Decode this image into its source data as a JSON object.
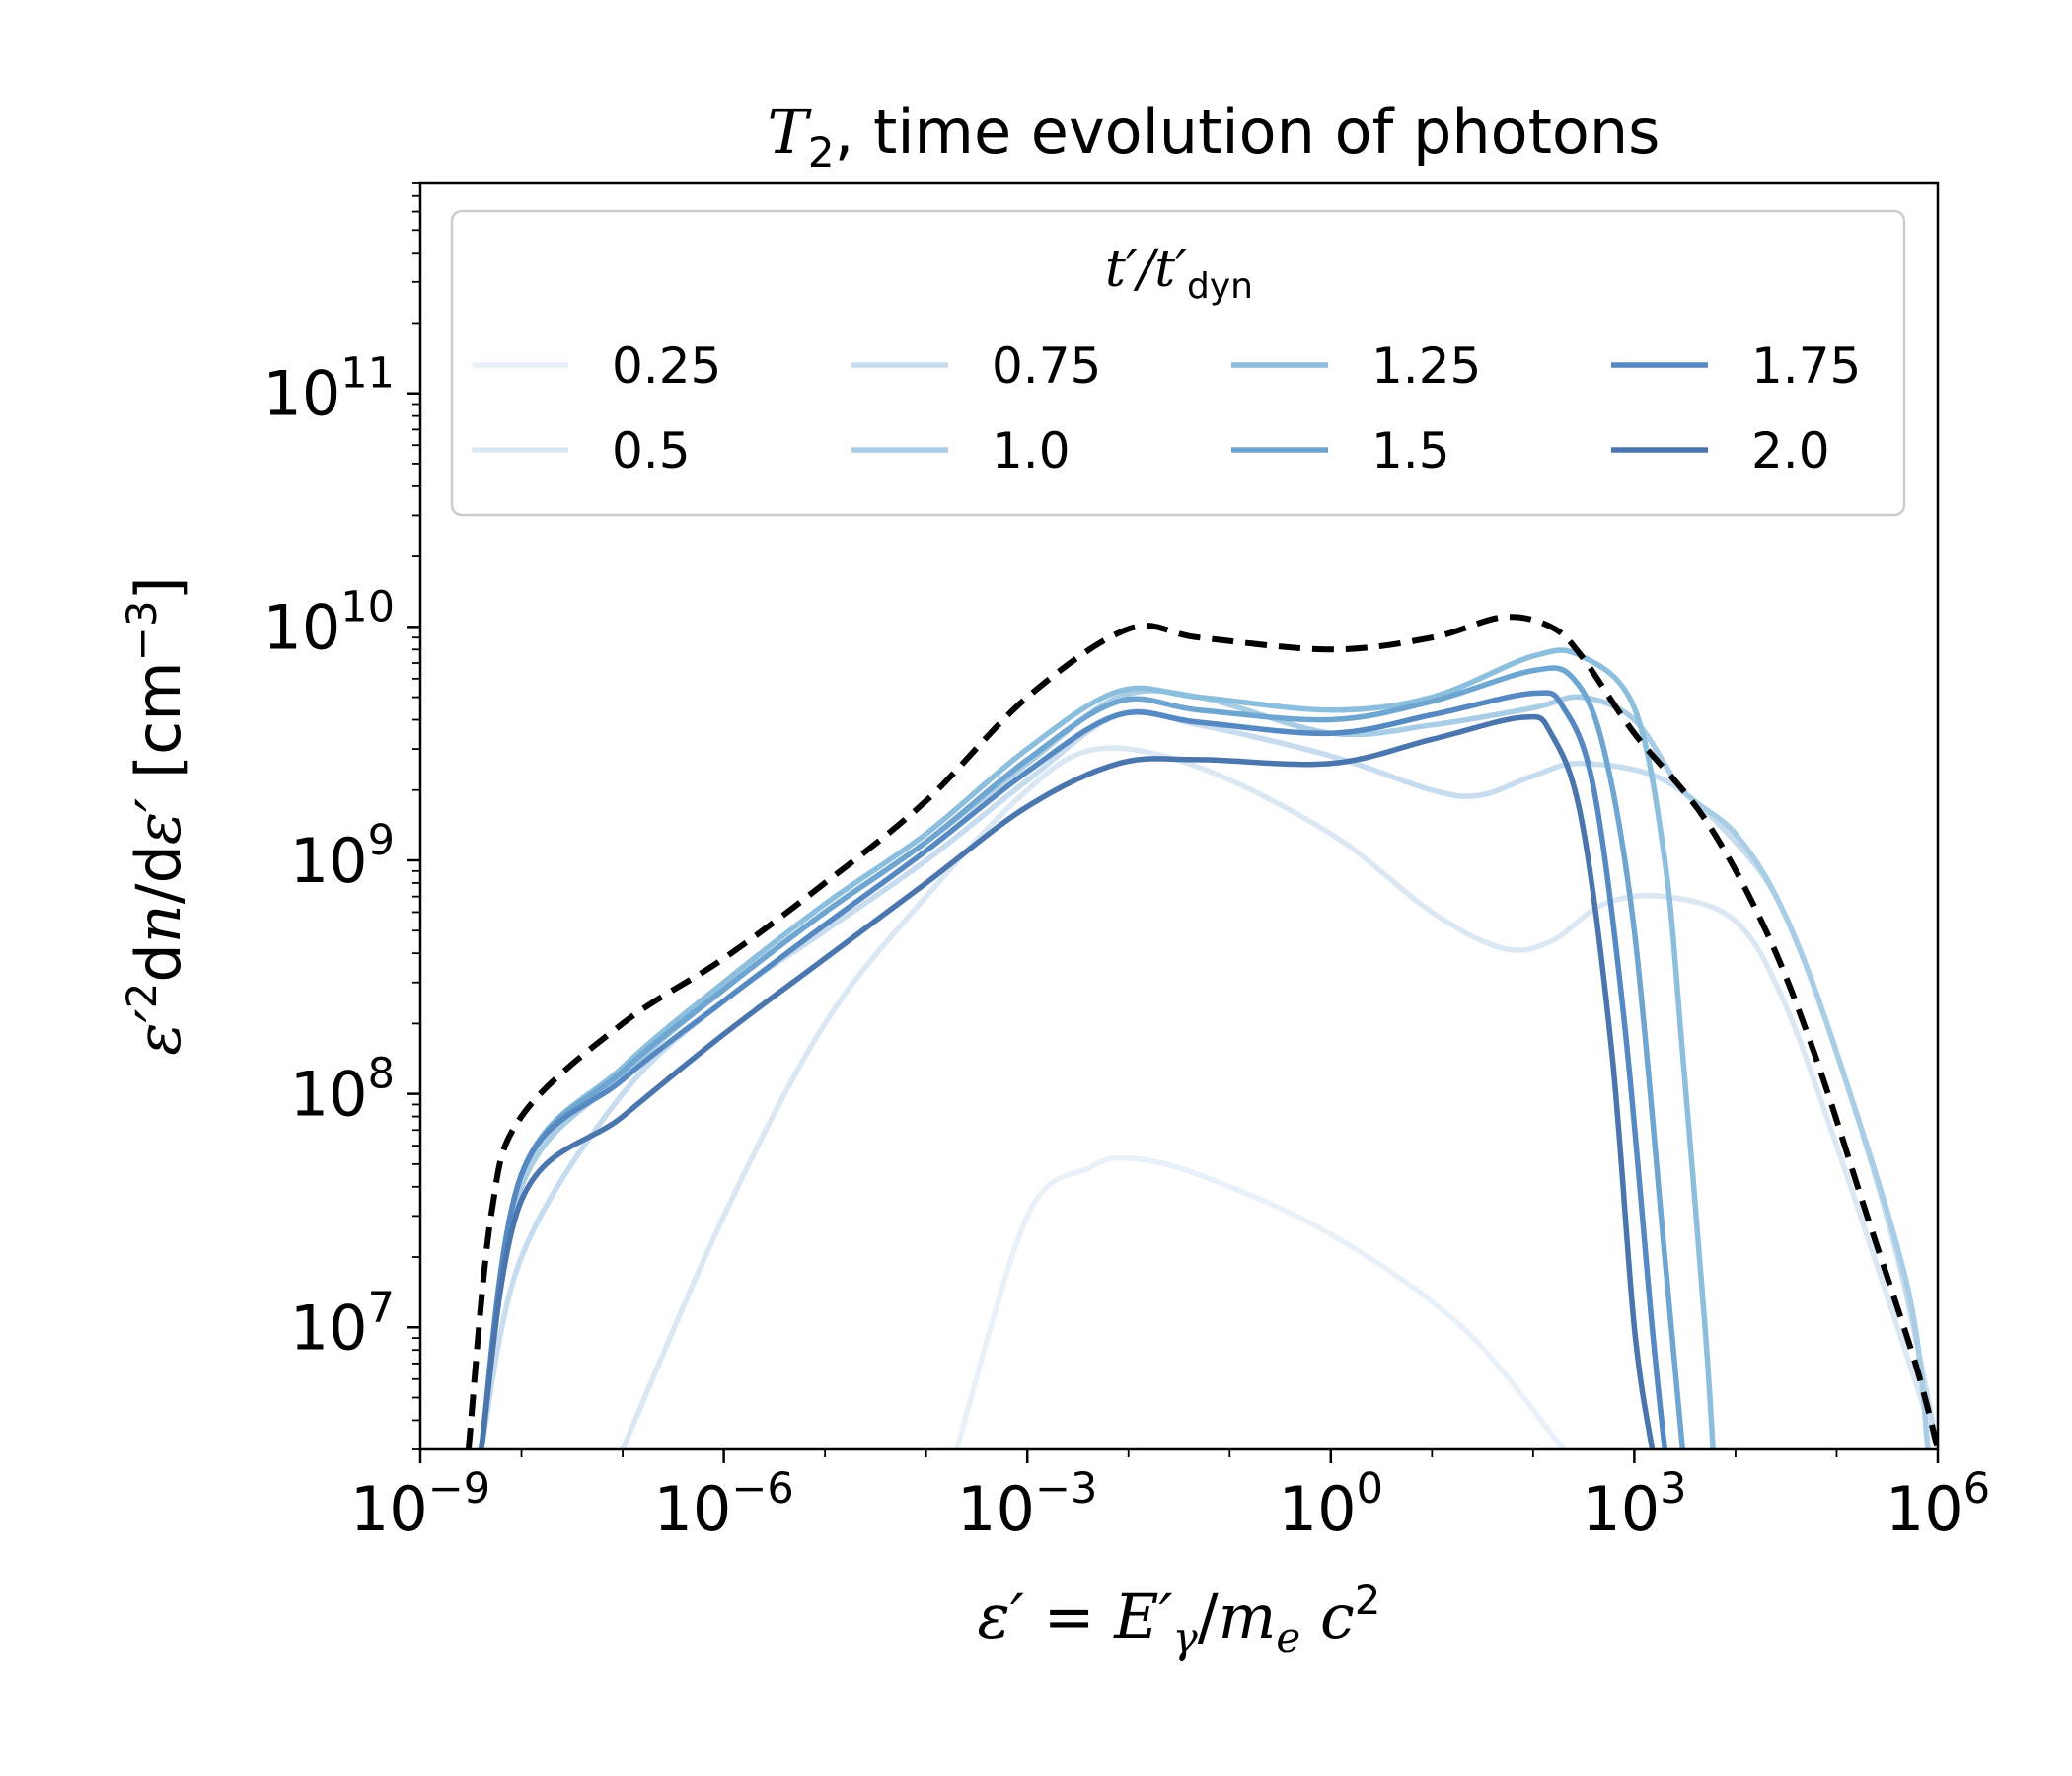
{
  "chart_data": {
    "type": "line",
    "title_main": "T",
    "title_sub": "2",
    "title_rest": ", time evolution of photons",
    "x_scale": "log",
    "y_scale": "log",
    "xlim": [
      1e-09,
      1000000.0
    ],
    "ylim": [
      3000000.0,
      800000000000.0
    ],
    "x_ticks": [
      {
        "value": 1e-09,
        "base": "10",
        "exp": "−9"
      },
      {
        "value": 1e-06,
        "base": "10",
        "exp": "−6"
      },
      {
        "value": 0.001,
        "base": "10",
        "exp": "−3"
      },
      {
        "value": 1,
        "base": "10",
        "exp": "0"
      },
      {
        "value": 1000.0,
        "base": "10",
        "exp": "3"
      },
      {
        "value": 1000000.0,
        "base": "10",
        "exp": "6"
      }
    ],
    "y_ticks": [
      {
        "value": 10000000.0,
        "base": "10",
        "exp": "7"
      },
      {
        "value": 100000000.0,
        "base": "10",
        "exp": "8"
      },
      {
        "value": 1000000000.0,
        "base": "10",
        "exp": "9"
      },
      {
        "value": 10000000000.0,
        "base": "10",
        "exp": "10"
      },
      {
        "value": 100000000000.0,
        "base": "10",
        "exp": "11"
      }
    ],
    "xlabel": "ε′ = E′γ/mₑc²",
    "ylabel": "ε′²dn/dε′ [cm⁻³]",
    "grid": false,
    "legend": {
      "title": "t′/t′dyn",
      "placement": "top",
      "columns": 4
    },
    "series": [
      {
        "name": "0.25",
        "color": "#e8f1fa",
        "points": [
          [
            0.0002,
            3000000.0
          ],
          [
            0.001,
            30000000.0
          ],
          [
            0.004,
            48000000.0
          ],
          [
            0.01,
            53000000.0
          ],
          [
            0.05,
            45000000.0
          ],
          [
            1,
            25000000.0
          ],
          [
            20,
            10000000.0
          ],
          [
            200,
            3000000.0
          ]
        ]
      },
      {
        "name": "0.5",
        "color": "#dbe8f4",
        "points": [
          [
            1e-07,
            3000000.0
          ],
          [
            1e-06,
            30000000.0
          ],
          [
            1e-05,
            200000000.0
          ],
          [
            0.0001,
            700000000.0
          ],
          [
            0.001,
            2000000000.0
          ],
          [
            0.005,
            3000000000.0
          ],
          [
            0.05,
            2500000000.0
          ],
          [
            1,
            1300000000.0
          ],
          [
            10,
            600000000.0
          ],
          [
            50,
            420000000.0
          ],
          [
            150,
            450000000.0
          ],
          [
            500,
            650000000.0
          ],
          [
            2000,
            700000000.0
          ],
          [
            10000,
            550000000.0
          ],
          [
            30000,
            250000000.0
          ],
          [
            100000,
            60000000.0
          ],
          [
            400000,
            10000000.0
          ],
          [
            1000000.0,
            3000000.0
          ]
        ]
      },
      {
        "name": "0.75",
        "color": "#c7dcef",
        "points": [
          [
            4e-09,
            3000000.0
          ],
          [
            1e-08,
            20000000.0
          ],
          [
            1e-07,
            100000000.0
          ],
          [
            1e-06,
            250000000.0
          ],
          [
            1e-05,
            500000000.0
          ],
          [
            0.0001,
            1000000000.0
          ],
          [
            0.001,
            2200000000.0
          ],
          [
            0.008,
            4200000000.0
          ],
          [
            0.05,
            3800000000.0
          ],
          [
            1,
            2800000000.0
          ],
          [
            10,
            2000000000.0
          ],
          [
            30,
            1900000000.0
          ],
          [
            100,
            2300000000.0
          ],
          [
            300,
            2600000000.0
          ],
          [
            2000,
            2200000000.0
          ],
          [
            10000,
            1200000000.0
          ],
          [
            30000,
            600000000.0
          ],
          [
            100000,
            150000000.0
          ],
          [
            400000,
            20000000.0
          ],
          [
            1000000.0,
            3000000.0
          ]
        ]
      },
      {
        "name": "1.0",
        "color": "#a9cde5",
        "points": [
          [
            4e-09,
            3000000.0
          ],
          [
            1e-08,
            40000000.0
          ],
          [
            1e-07,
            120000000.0
          ],
          [
            1e-06,
            280000000.0
          ],
          [
            1e-05,
            600000000.0
          ],
          [
            0.0001,
            1200000000.0
          ],
          [
            0.001,
            2600000000.0
          ],
          [
            0.008,
            5000000000.0
          ],
          [
            0.05,
            5000000000.0
          ],
          [
            1,
            3500000000.0
          ],
          [
            10,
            3800000000.0
          ],
          [
            100,
            4500000000.0
          ],
          [
            300,
            5000000000.0
          ],
          [
            1000,
            4000000000.0
          ],
          [
            3000,
            2000000000.0
          ],
          [
            10000,
            1300000000.0
          ],
          [
            30000,
            600000000.0
          ],
          [
            100000,
            150000000.0
          ],
          [
            500000,
            15000000.0
          ],
          [
            800000,
            3000000.0
          ]
        ]
      },
      {
        "name": "1.25",
        "color": "#8cbedd",
        "points": [
          [
            4e-09,
            3000000.0
          ],
          [
            1e-08,
            45000000.0
          ],
          [
            1e-07,
            130000000.0
          ],
          [
            1e-06,
            300000000.0
          ],
          [
            1e-05,
            650000000.0
          ],
          [
            0.0001,
            1300000000.0
          ],
          [
            0.001,
            3000000000.0
          ],
          [
            0.008,
            5300000000.0
          ],
          [
            0.05,
            5000000000.0
          ],
          [
            1,
            4400000000.0
          ],
          [
            10,
            5000000000.0
          ],
          [
            100,
            7500000000.0
          ],
          [
            300,
            7500000000.0
          ],
          [
            1000,
            4500000000.0
          ],
          [
            2000,
            1000000000.0
          ],
          [
            3000,
            150000000.0
          ],
          [
            5000,
            10000000.0
          ],
          [
            6000,
            3000000.0
          ]
        ]
      },
      {
        "name": "1.5",
        "color": "#6ea5d1",
        "points": [
          [
            4e-09,
            3000000.0
          ],
          [
            1e-08,
            45000000.0
          ],
          [
            1e-07,
            125000000.0
          ],
          [
            1e-06,
            280000000.0
          ],
          [
            1e-05,
            600000000.0
          ],
          [
            0.0001,
            1200000000.0
          ],
          [
            0.001,
            2700000000.0
          ],
          [
            0.008,
            4800000000.0
          ],
          [
            0.05,
            4400000000.0
          ],
          [
            1,
            4000000000.0
          ],
          [
            10,
            4800000000.0
          ],
          [
            100,
            6500000000.0
          ],
          [
            250,
            6000000000.0
          ],
          [
            500,
            3000000000.0
          ],
          [
            1000,
            500000000.0
          ],
          [
            2000,
            20000000.0
          ],
          [
            3000,
            3000000.0
          ]
        ]
      },
      {
        "name": "1.75",
        "color": "#5689c1",
        "points": [
          [
            4e-09,
            3000000.0
          ],
          [
            1e-08,
            45000000.0
          ],
          [
            1e-07,
            115000000.0
          ],
          [
            1e-06,
            250000000.0
          ],
          [
            1e-05,
            530000000.0
          ],
          [
            0.0001,
            1100000000.0
          ],
          [
            0.001,
            2400000000.0
          ],
          [
            0.008,
            4200000000.0
          ],
          [
            0.05,
            3900000000.0
          ],
          [
            1,
            3500000000.0
          ],
          [
            10,
            4200000000.0
          ],
          [
            100,
            5200000000.0
          ],
          [
            200,
            4500000000.0
          ],
          [
            400,
            2000000000.0
          ],
          [
            800,
            200000000.0
          ],
          [
            1500,
            10000000.0
          ],
          [
            2000,
            3000000.0
          ]
        ]
      },
      {
        "name": "2.0",
        "color": "#4a75ad",
        "points": [
          [
            4e-09,
            3000000.0
          ],
          [
            1e-08,
            35000000.0
          ],
          [
            1e-07,
            80000000.0
          ],
          [
            1e-06,
            180000000.0
          ],
          [
            1e-05,
            380000000.0
          ],
          [
            0.0001,
            800000000.0
          ],
          [
            0.001,
            1700000000.0
          ],
          [
            0.008,
            2600000000.0
          ],
          [
            0.05,
            2700000000.0
          ],
          [
            1,
            2600000000.0
          ],
          [
            10,
            3300000000.0
          ],
          [
            80,
            4100000000.0
          ],
          [
            150,
            3500000000.0
          ],
          [
            300,
            1500000000.0
          ],
          [
            600,
            150000000.0
          ],
          [
            1000,
            10000000.0
          ],
          [
            1500,
            3000000.0
          ]
        ]
      }
    ],
    "envelope": {
      "style": "dashed",
      "color": "#000000",
      "points": [
        [
          3e-09,
          3000000.0
        ],
        [
          5e-09,
          30000000.0
        ],
        [
          1e-08,
          80000000.0
        ],
        [
          1e-07,
          200000000.0
        ],
        [
          1e-06,
          380000000.0
        ],
        [
          1e-05,
          800000000.0
        ],
        [
          0.0001,
          1800000000.0
        ],
        [
          0.001,
          5000000000.0
        ],
        [
          0.01,
          9800000000.0
        ],
        [
          0.05,
          9000000000.0
        ],
        [
          1,
          8000000000.0
        ],
        [
          10,
          9000000000.0
        ],
        [
          50,
          11000000000.0
        ],
        [
          150,
          10000000000.0
        ],
        [
          300,
          7500000000.0
        ],
        [
          1000,
          3500000000.0
        ],
        [
          5000,
          1500000000.0
        ],
        [
          20000,
          500000000.0
        ],
        [
          60000,
          150000000.0
        ],
        [
          200000,
          30000000.0
        ],
        [
          600000,
          7000000.0
        ],
        [
          1000000.0,
          3000000.0
        ]
      ]
    }
  }
}
